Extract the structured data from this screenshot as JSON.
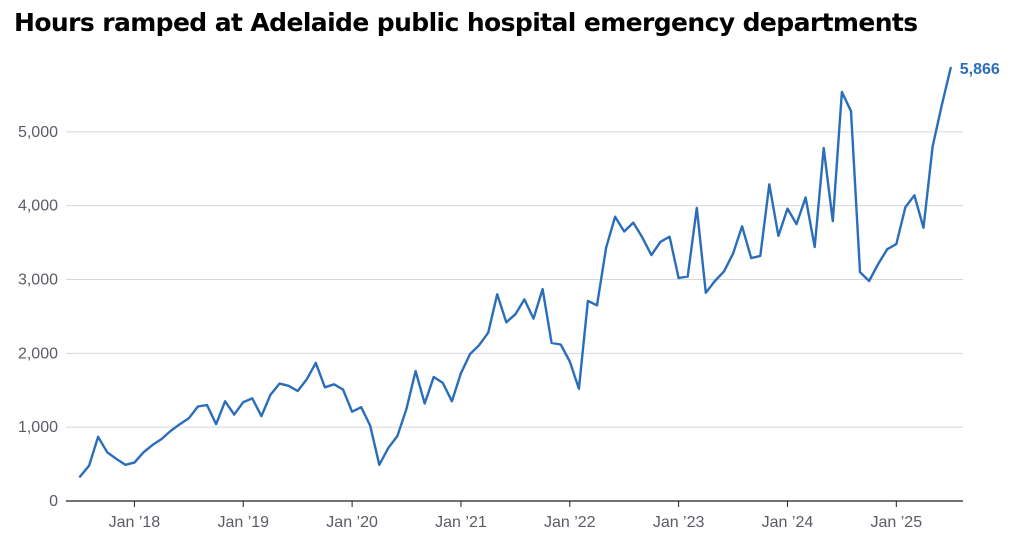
{
  "chart_data": {
    "type": "line",
    "title": "Hours ramped at Adelaide public hospital emergency departments",
    "xlabel": "",
    "ylabel": "",
    "ylim": [
      0,
      6000
    ],
    "yticks": [
      0,
      1000,
      2000,
      3000,
      4000,
      5000
    ],
    "ytick_labels": [
      "0",
      "1,000",
      "2,000",
      "3,000",
      "4,000",
      "5,000"
    ],
    "xtick_labels": [
      "Jan ’18",
      "Jan ’19",
      "Jan ’20",
      "Jan ’21",
      "Jan ’22",
      "Jan ’23",
      "Jan ’24",
      "Jan ’25"
    ],
    "grid": "horizontal",
    "color": "#2a6ebb",
    "end_label": "5,866",
    "series": [
      {
        "x": [
          "2017-07",
          "2017-08",
          "2017-09",
          "2017-10",
          "2017-11",
          "2017-12",
          "2018-01",
          "2018-02",
          "2018-03",
          "2018-04",
          "2018-05",
          "2018-06",
          "2018-07",
          "2018-08",
          "2018-09",
          "2018-10",
          "2018-11",
          "2018-12",
          "2019-01",
          "2019-02",
          "2019-03",
          "2019-04",
          "2019-05",
          "2019-06",
          "2019-07",
          "2019-08",
          "2019-09",
          "2019-10",
          "2019-11",
          "2019-12",
          "2020-01",
          "2020-02",
          "2020-03",
          "2020-04",
          "2020-05",
          "2020-06",
          "2020-07",
          "2020-08",
          "2020-09",
          "2020-10",
          "2020-11",
          "2020-12",
          "2021-01",
          "2021-02",
          "2021-03",
          "2021-04",
          "2021-05",
          "2021-06",
          "2021-07",
          "2021-08",
          "2021-09",
          "2021-10",
          "2021-11",
          "2021-12",
          "2022-01",
          "2022-02",
          "2022-03",
          "2022-04",
          "2022-05",
          "2022-06",
          "2022-07",
          "2022-08",
          "2022-09",
          "2022-10",
          "2022-11",
          "2022-12",
          "2023-01",
          "2023-02",
          "2023-03",
          "2023-04",
          "2023-05",
          "2023-06",
          "2023-07",
          "2023-08",
          "2023-09",
          "2023-10",
          "2023-11",
          "2023-12",
          "2024-01",
          "2024-02",
          "2024-03",
          "2024-04",
          "2024-05",
          "2024-06",
          "2024-07",
          "2024-08",
          "2024-09",
          "2024-10",
          "2024-11",
          "2024-12",
          "2025-01",
          "2025-02",
          "2025-03",
          "2025-04",
          "2025-05",
          "2025-06"
        ],
        "values": [
          330,
          480,
          870,
          660,
          570,
          490,
          520,
          660,
          760,
          840,
          950,
          1040,
          1120,
          1280,
          1300,
          1040,
          1350,
          1170,
          1340,
          1390,
          1150,
          1440,
          1590,
          1560,
          1490,
          1650,
          1870,
          1540,
          1580,
          1510,
          1210,
          1270,
          1020,
          490,
          720,
          880,
          1250,
          1760,
          1320,
          1680,
          1600,
          1350,
          1730,
          1990,
          2110,
          2280,
          2800,
          2420,
          2530,
          2730,
          2470,
          2870,
          2140,
          2120,
          1890,
          1520,
          2710,
          2650,
          3430,
          3850,
          3650,
          3770,
          3570,
          3330,
          3510,
          3580,
          3020,
          3040,
          3970,
          2820,
          2980,
          3110,
          3350,
          3720,
          3290,
          3320,
          4290,
          3590,
          3960,
          3750,
          4110,
          3440,
          4780,
          3790,
          5540,
          5280,
          3100,
          2980,
          3210,
          3410,
          3480,
          3980,
          4140,
          3700,
          4800,
          5350
        ],
        "last_point": {
          "x": "2025-07",
          "value": 5866
        }
      }
    ]
  }
}
